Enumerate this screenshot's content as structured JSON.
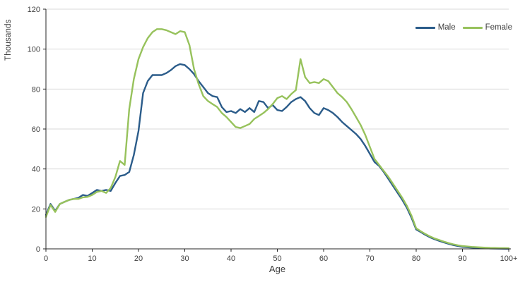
{
  "chart_data": {
    "type": "line",
    "title": "",
    "xlabel": "Age",
    "ylabel": "Thousands",
    "grid": "horizontal",
    "legend_position": "top-right",
    "xlim": [
      0,
      100
    ],
    "ylim": [
      0,
      120
    ],
    "y_ticks": [
      0,
      20,
      40,
      60,
      80,
      100,
      120
    ],
    "x_tick_values": [
      0,
      10,
      20,
      30,
      40,
      50,
      60,
      70,
      80,
      90,
      100
    ],
    "x_tick_labels": [
      "0",
      "10",
      "20",
      "30",
      "40",
      "50",
      "60",
      "70",
      "80",
      "90",
      "100+"
    ],
    "x": [
      0,
      1,
      2,
      3,
      4,
      5,
      6,
      7,
      8,
      9,
      10,
      11,
      12,
      13,
      14,
      15,
      16,
      17,
      18,
      19,
      20,
      21,
      22,
      23,
      24,
      25,
      26,
      27,
      28,
      29,
      30,
      31,
      32,
      33,
      34,
      35,
      36,
      37,
      38,
      39,
      40,
      41,
      42,
      43,
      44,
      45,
      46,
      47,
      48,
      49,
      50,
      51,
      52,
      53,
      54,
      55,
      56,
      57,
      58,
      59,
      60,
      61,
      62,
      63,
      64,
      65,
      66,
      67,
      68,
      69,
      70,
      71,
      72,
      73,
      74,
      75,
      76,
      77,
      78,
      79,
      80,
      81,
      82,
      83,
      84,
      85,
      86,
      87,
      88,
      89,
      90,
      91,
      92,
      93,
      94,
      95,
      96,
      97,
      98,
      99,
      100
    ],
    "series": [
      {
        "name": "Male",
        "color": "#2b5c8a",
        "values": [
          17,
          22.5,
          19,
          22.5,
          23.5,
          24.5,
          25,
          25.5,
          27,
          26.5,
          28,
          29.5,
          29,
          29.5,
          29,
          33,
          36.5,
          37,
          38.5,
          47,
          59,
          78,
          84,
          87,
          87,
          87,
          88,
          89.5,
          91.5,
          92.5,
          92,
          90,
          87.5,
          84,
          81,
          78,
          76.5,
          76,
          71,
          68.5,
          69,
          68,
          70,
          68.5,
          70.5,
          68.5,
          74,
          73.5,
          70.5,
          72,
          69.5,
          69,
          71,
          73.5,
          75,
          76,
          74,
          70.5,
          68,
          67,
          70.5,
          69.5,
          68,
          66,
          63.5,
          61.5,
          59.5,
          57.5,
          55,
          51.5,
          47.5,
          43.5,
          41.5,
          38.5,
          35,
          31.5,
          28,
          24.5,
          20.5,
          15.5,
          9.7,
          8.4,
          7,
          5.8,
          4.8,
          4,
          3.2,
          2.5,
          1.9,
          1.4,
          1,
          0.8,
          0.65,
          0.5,
          0.4,
          0.3,
          0.2,
          0.15,
          0.1,
          0.07,
          0.05
        ]
      },
      {
        "name": "Female",
        "color": "#97c25c",
        "values": [
          16,
          22,
          18.5,
          22.5,
          23.5,
          24.5,
          25,
          25,
          25.8,
          26,
          27,
          28.5,
          29,
          28,
          30.5,
          36,
          44,
          42,
          70,
          85,
          95,
          101,
          105.5,
          108.5,
          110,
          110,
          109.5,
          108.5,
          107.5,
          109,
          108.5,
          102,
          90,
          82.5,
          76.5,
          74,
          72.5,
          71,
          68,
          66,
          63.5,
          61,
          60.5,
          61.5,
          62.5,
          65,
          66.5,
          68,
          70,
          72.5,
          75.5,
          76.5,
          75,
          77.5,
          79.5,
          95,
          86,
          83,
          83.5,
          83,
          85,
          84,
          81,
          78,
          76,
          73.5,
          70,
          66,
          62,
          57,
          51,
          45,
          42,
          39,
          36,
          32.5,
          29,
          25.5,
          21.5,
          16.5,
          10.3,
          8.8,
          7.4,
          6.2,
          5.2,
          4.4,
          3.6,
          2.9,
          2.3,
          1.8,
          1.4,
          1.2,
          1,
          0.85,
          0.7,
          0.6,
          0.5,
          0.45,
          0.4,
          0.35,
          0.3
        ]
      }
    ]
  },
  "colors": {
    "grid": "#d9d9d9",
    "axis": "#262626",
    "tick_text": "#404040"
  }
}
